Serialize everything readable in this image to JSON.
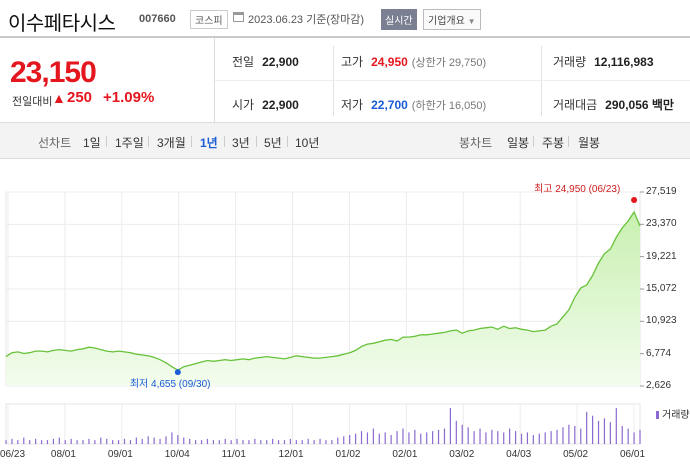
{
  "header": {
    "company_name": "이수페타시스",
    "stock_code": "007660",
    "market": "코스피",
    "date_text": "2023.06.23 기준(장마감)",
    "realtime_label": "실시간",
    "company_overview_label": "기업개요"
  },
  "price": {
    "current": "23,150",
    "change_label": "전일대비",
    "change_arrow": "▲",
    "change_value": "250",
    "change_pct": "+1.09%"
  },
  "stats": {
    "prev_close_label": "전일",
    "prev_close": "22,900",
    "high_label": "고가",
    "high": "24,950",
    "upper_limit": "(상한가 29,750)",
    "volume_label": "거래량",
    "volume": "12,116,983",
    "open_label": "시가",
    "open": "22,900",
    "low_label": "저가",
    "low": "22,700",
    "lower_limit": "(하한가 16,050)",
    "amount_label": "거래대금",
    "amount": "290,056 백만"
  },
  "tabs": {
    "line_chart_label": "선차트",
    "line_periods": [
      "1일",
      "1주일",
      "3개월",
      "1년",
      "3년",
      "5년",
      "10년"
    ],
    "active_period": "1년",
    "candle_chart_label": "봉차트",
    "candle_periods": [
      "일봉",
      "주봉",
      "월봉"
    ]
  },
  "chart_data": {
    "type": "area",
    "y_ticks": [
      "27,519",
      "23,370",
      "19,221",
      "15,072",
      "10,923",
      "6,774",
      "2,626"
    ],
    "ylim": [
      2626,
      27519
    ],
    "x_ticks": [
      "06/23",
      "08/01",
      "09/01",
      "10/04",
      "11/01",
      "12/01",
      "01/02",
      "02/01",
      "03/02",
      "04/03",
      "05/02",
      "06/01"
    ],
    "high_annotation": "최고 24,950 (06/23)",
    "low_annotation": "최저 4,655 (09/30)",
    "volume_legend": "거래량",
    "series": [
      {
        "values": [
          6400,
          6900,
          7000,
          6800,
          6900,
          7100,
          7100,
          7000,
          7200,
          7300,
          7200,
          7100,
          7300,
          7400,
          7600,
          7500,
          7300,
          7100,
          7000,
          7100,
          7000,
          6900,
          6700,
          6600,
          6500,
          6300,
          6000,
          5600,
          5100,
          4655,
          5100,
          5300,
          5500,
          5700,
          5900,
          5800,
          5900,
          6000,
          5900,
          6000,
          6100,
          6000,
          6200,
          6300,
          6400,
          6300,
          6200,
          6100,
          6300,
          6500,
          6400,
          6300,
          6200,
          6200,
          6300,
          6400,
          6500,
          6700,
          6900,
          7200,
          7700,
          8000,
          8100,
          8300,
          8500,
          8600,
          8400,
          8900,
          8900,
          9000,
          9200,
          9200,
          9300,
          9400,
          9500,
          9700,
          9800,
          9400,
          9700,
          9800,
          10000,
          10100,
          10200,
          9900,
          10300,
          10000,
          10100,
          9900,
          9800,
          9600,
          9700,
          9800,
          10300,
          10600,
          11500,
          12400,
          14000,
          15200,
          15600,
          16800,
          18400,
          19600,
          20200,
          21700,
          22900,
          23800,
          24950,
          23150
        ]
      }
    ],
    "volume": [
      3,
      4,
      3,
      5,
      3,
      4,
      3,
      3,
      4,
      5,
      3,
      4,
      3,
      3,
      4,
      3,
      5,
      4,
      3,
      3,
      4,
      3,
      5,
      4,
      6,
      5,
      4,
      6,
      9,
      7,
      5,
      4,
      3,
      3,
      4,
      3,
      3,
      4,
      3,
      4,
      3,
      3,
      4,
      3,
      3,
      4,
      3,
      3,
      4,
      3,
      3,
      4,
      3,
      4,
      3,
      3,
      5,
      6,
      7,
      8,
      10,
      9,
      12,
      8,
      9,
      7,
      10,
      12,
      9,
      11,
      8,
      9,
      10,
      11,
      12,
      28,
      18,
      15,
      13,
      10,
      12,
      9,
      11,
      10,
      9,
      12,
      10,
      8,
      9,
      7,
      8,
      9,
      10,
      11,
      13,
      15,
      14,
      12,
      25,
      22,
      18,
      20,
      17,
      28,
      14,
      12,
      9,
      11
    ]
  }
}
